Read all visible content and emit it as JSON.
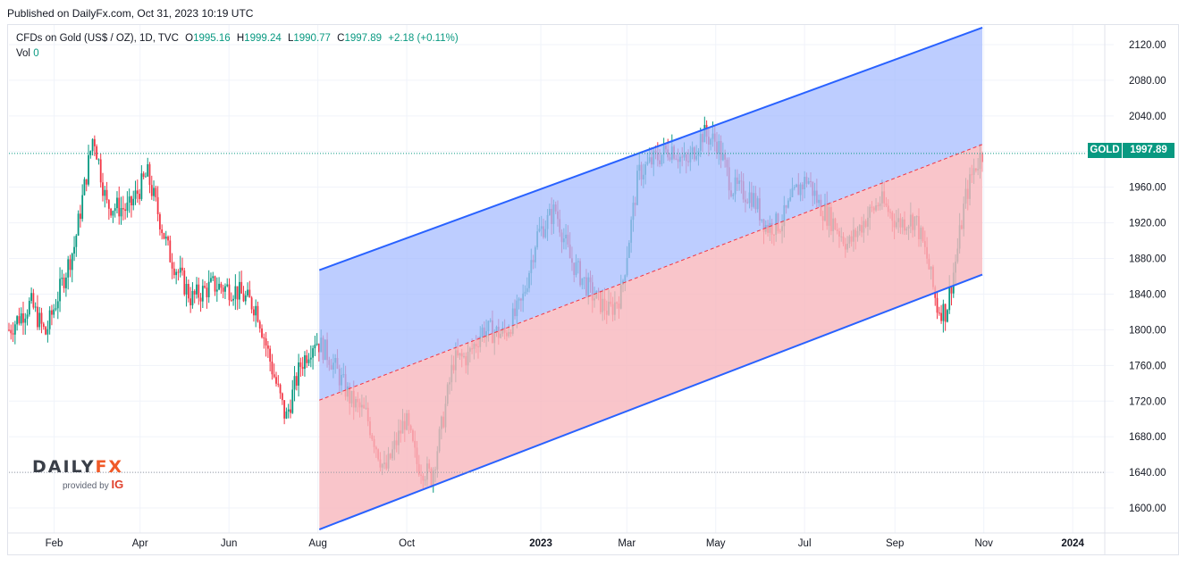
{
  "published": "Published on DailyFx.com, Oct 31, 2023 10:19 UTC",
  "legend": {
    "instrument": "CFDs on Gold (US$ / OZ), 1D, TVC",
    "open_label": "O",
    "open": "1995.16",
    "high_label": "H",
    "high": "1999.24",
    "low_label": "L",
    "low": "1990.77",
    "close_label": "C",
    "close": "1997.89",
    "change": "+2.18 (+0.11%)",
    "vol_label": "Vol",
    "vol": "0"
  },
  "price_tag": {
    "symbol": "GOLD",
    "value": "1997.89"
  },
  "logo": {
    "brand_a": "DAILY",
    "brand_b": "FX",
    "provided": "provided by",
    "ig": "IG"
  },
  "colors": {
    "up": "#089981",
    "down": "#f23645",
    "channel_line": "#2962ff",
    "upper_fill": "#a7bcff",
    "lower_fill": "#f8b6bd"
  },
  "chart_data": {
    "type": "candlestick",
    "title": "CFDs on Gold (US$ / OZ), 1D, TVC",
    "y_axis_ticks": [
      2120,
      2080,
      2040,
      2000,
      1960,
      1920,
      1880,
      1840,
      1800,
      1760,
      1720,
      1680,
      1640,
      1600
    ],
    "y_tick_labels": [
      "2120.00",
      "2080.00",
      "2040.00",
      "2000.00",
      "1960.00",
      "1920.00",
      "1880.00",
      "1840.00",
      "1800.00",
      "1760.00",
      "1720.00",
      "1680.00",
      "1640.00",
      "1600.00"
    ],
    "ylim": [
      1572,
      2142
    ],
    "x_axis_labels": [
      "Feb",
      "Apr",
      "Jun",
      "Aug",
      "Oct",
      "2023",
      "Mar",
      "May",
      "Jul",
      "Sep",
      "Nov",
      "2024"
    ],
    "x_axis_tick_days": [
      31,
      90,
      151,
      212,
      273,
      365,
      424,
      485,
      546,
      608,
      669,
      730
    ],
    "x_range_days": [
      0,
      752
    ],
    "last_close": 1997.89,
    "horizontal_reference_levels": [
      1997.89,
      1640
    ],
    "regression_channel": {
      "start_day": 213,
      "end_day": 668,
      "upper": [
        1867,
        2139
      ],
      "middle": [
        1721,
        2008
      ],
      "lower": [
        1576,
        1862
      ]
    },
    "price_path_keypoints": [
      {
        "day": 0,
        "price": 1800
      },
      {
        "day": 15,
        "price": 1830
      },
      {
        "day": 25,
        "price": 1795
      },
      {
        "day": 45,
        "price": 1895
      },
      {
        "day": 58,
        "price": 2020
      },
      {
        "day": 67,
        "price": 1940
      },
      {
        "day": 82,
        "price": 1935
      },
      {
        "day": 95,
        "price": 1975
      },
      {
        "day": 110,
        "price": 1885
      },
      {
        "day": 125,
        "price": 1835
      },
      {
        "day": 140,
        "price": 1850
      },
      {
        "day": 155,
        "price": 1845
      },
      {
        "day": 170,
        "price": 1825
      },
      {
        "day": 180,
        "price": 1760
      },
      {
        "day": 190,
        "price": 1700
      },
      {
        "day": 200,
        "price": 1760
      },
      {
        "day": 210,
        "price": 1790
      },
      {
        "day": 220,
        "price": 1770
      },
      {
        "day": 235,
        "price": 1720
      },
      {
        "day": 245,
        "price": 1705
      },
      {
        "day": 258,
        "price": 1640
      },
      {
        "day": 265,
        "price": 1670
      },
      {
        "day": 272,
        "price": 1700
      },
      {
        "day": 280,
        "price": 1650
      },
      {
        "day": 290,
        "price": 1635
      },
      {
        "day": 298,
        "price": 1700
      },
      {
        "day": 305,
        "price": 1765
      },
      {
        "day": 315,
        "price": 1770
      },
      {
        "day": 325,
        "price": 1800
      },
      {
        "day": 340,
        "price": 1795
      },
      {
        "day": 352,
        "price": 1830
      },
      {
        "day": 362,
        "price": 1905
      },
      {
        "day": 375,
        "price": 1935
      },
      {
        "day": 385,
        "price": 1880
      },
      {
        "day": 400,
        "price": 1840
      },
      {
        "day": 412,
        "price": 1820
      },
      {
        "day": 420,
        "price": 1840
      },
      {
        "day": 432,
        "price": 1975
      },
      {
        "day": 442,
        "price": 1990
      },
      {
        "day": 455,
        "price": 2005
      },
      {
        "day": 465,
        "price": 1985
      },
      {
        "day": 476,
        "price": 2020
      },
      {
        "day": 486,
        "price": 2010
      },
      {
        "day": 496,
        "price": 1960
      },
      {
        "day": 510,
        "price": 1950
      },
      {
        "day": 520,
        "price": 1915
      },
      {
        "day": 530,
        "price": 1920
      },
      {
        "day": 540,
        "price": 1955
      },
      {
        "day": 548,
        "price": 1970
      },
      {
        "day": 556,
        "price": 1940
      },
      {
        "day": 566,
        "price": 1920
      },
      {
        "day": 576,
        "price": 1895
      },
      {
        "day": 588,
        "price": 1925
      },
      {
        "day": 598,
        "price": 1945
      },
      {
        "day": 610,
        "price": 1920
      },
      {
        "day": 622,
        "price": 1925
      },
      {
        "day": 630,
        "price": 1880
      },
      {
        "day": 637,
        "price": 1825
      },
      {
        "day": 643,
        "price": 1820
      },
      {
        "day": 650,
        "price": 1880
      },
      {
        "day": 656,
        "price": 1945
      },
      {
        "day": 662,
        "price": 1980
      },
      {
        "day": 668,
        "price": 1998
      }
    ]
  }
}
